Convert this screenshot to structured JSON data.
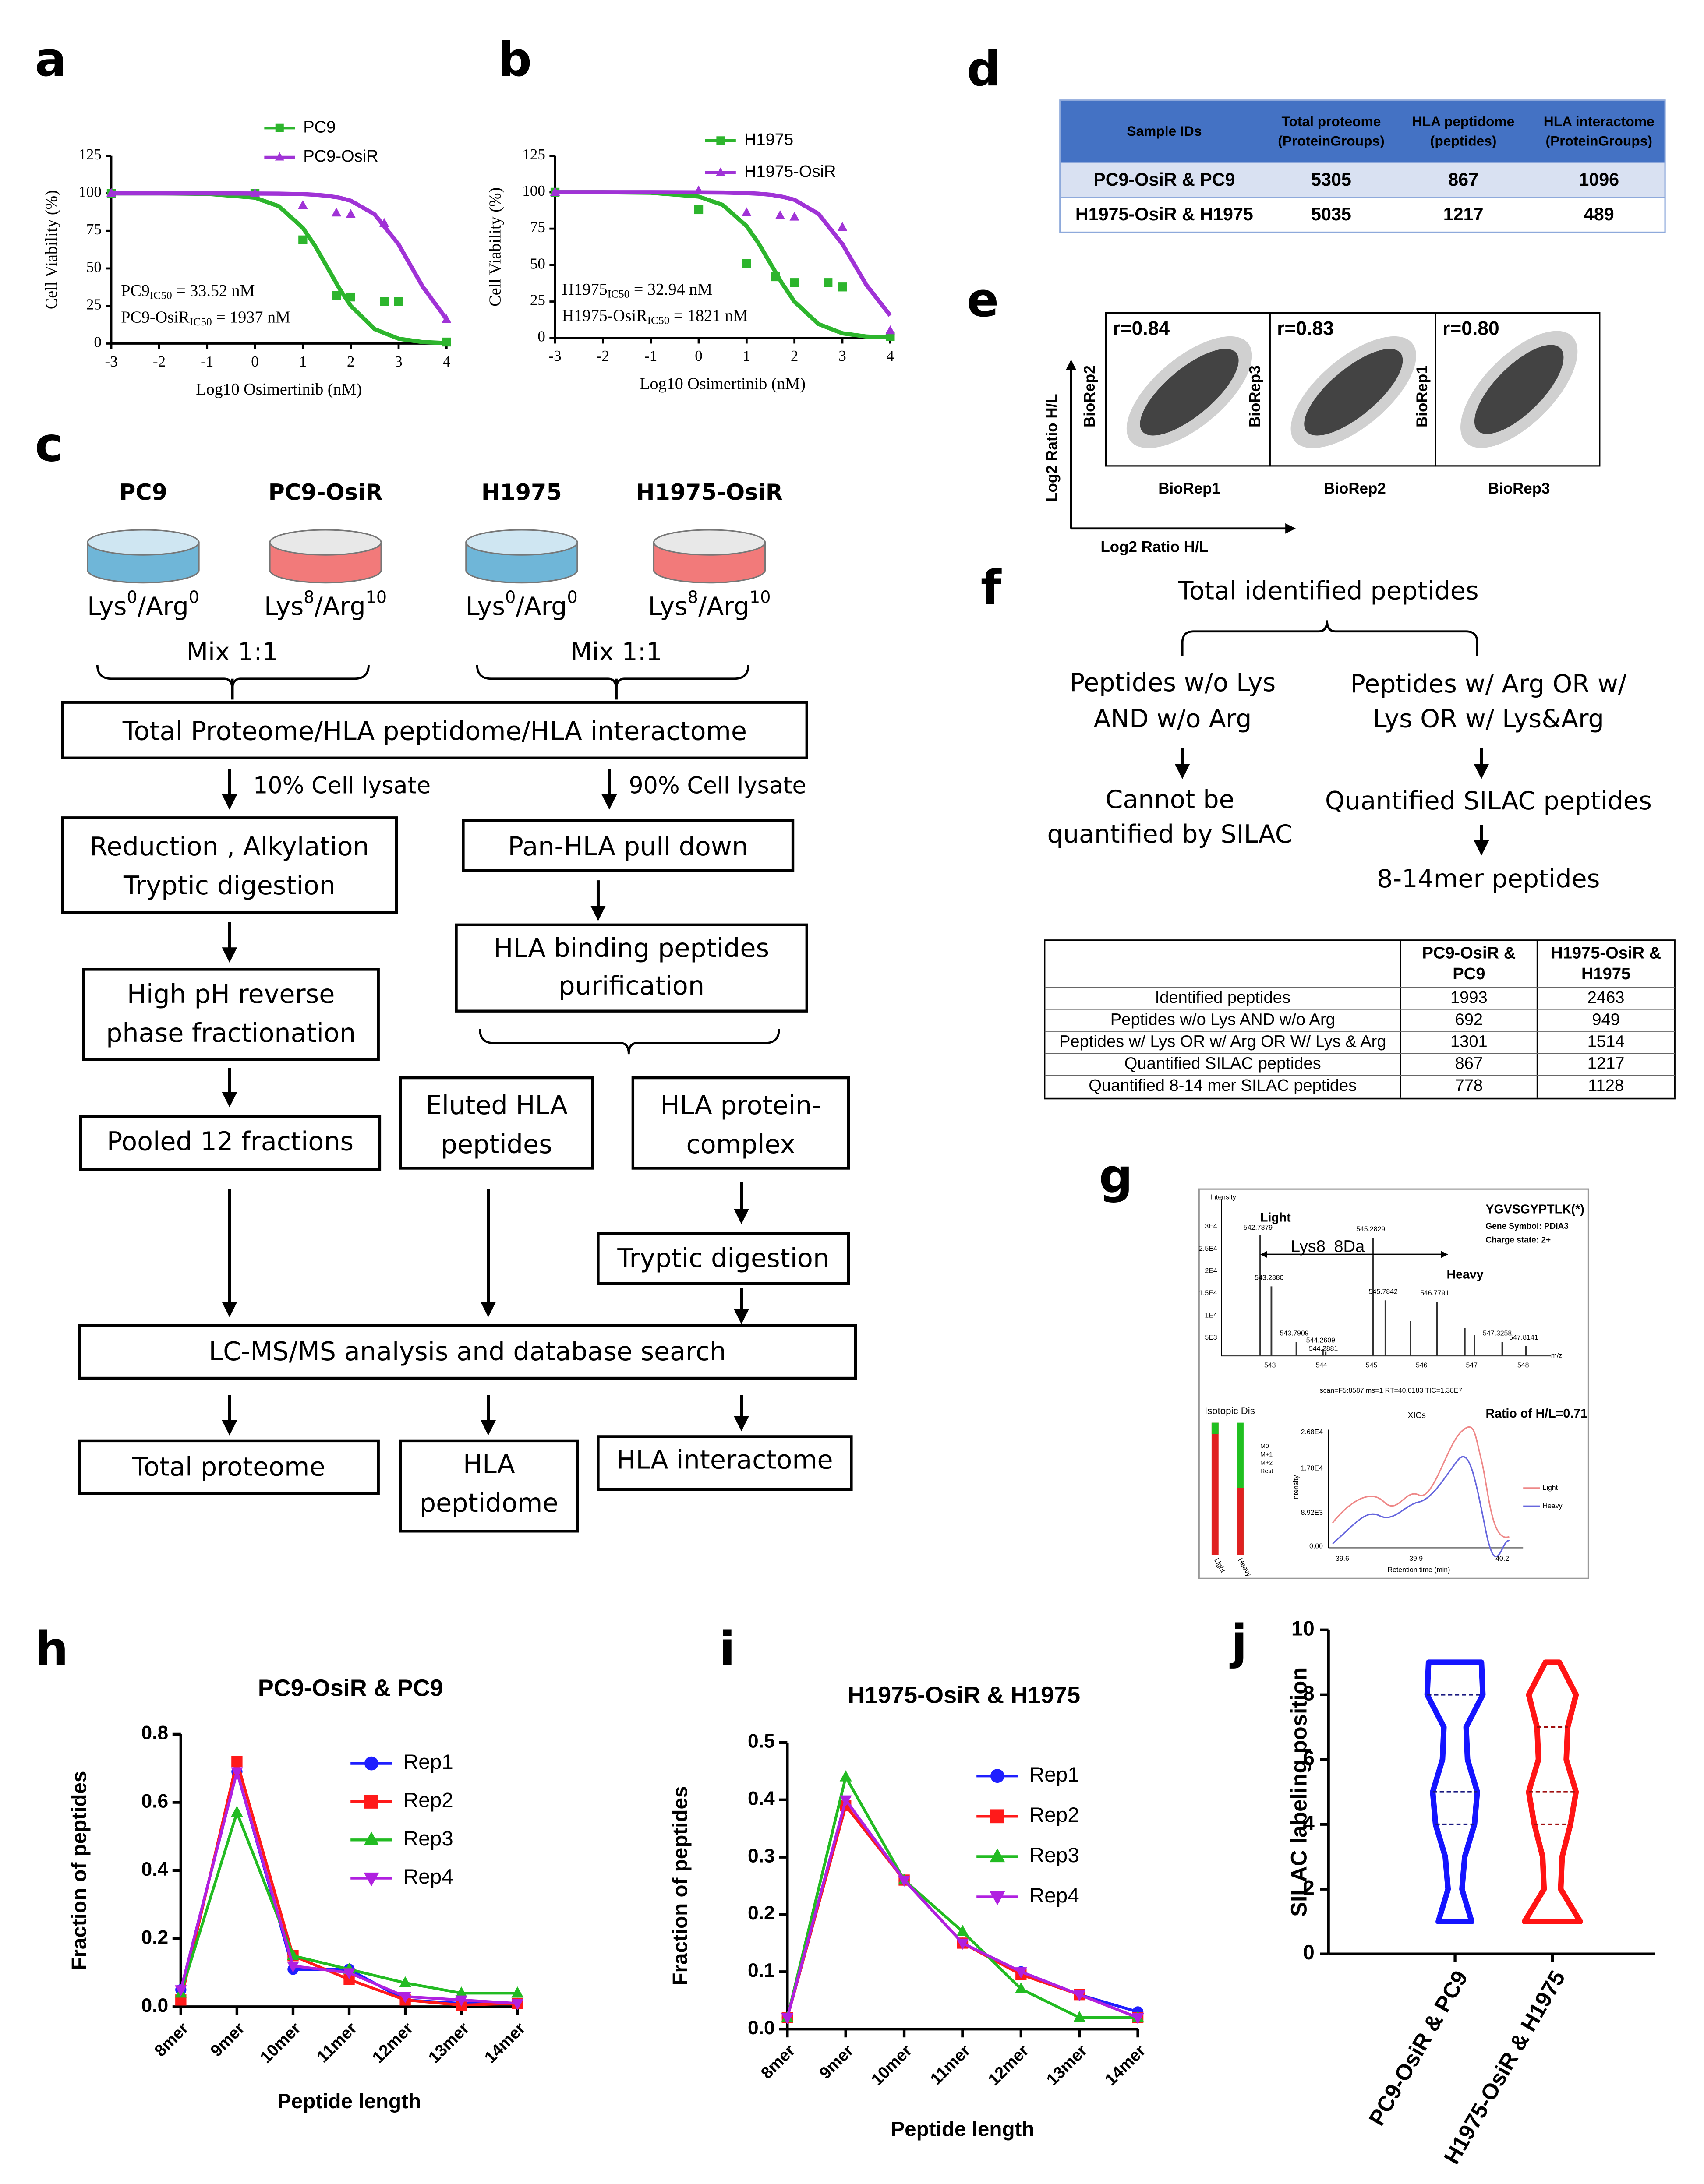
{
  "panel_labels": [
    "a",
    "b",
    "c",
    "d",
    "e",
    "f",
    "g",
    "h",
    "i",
    "j"
  ],
  "chart_data": [
    {
      "type": "dose_response",
      "xlabel": "Log10 Osimertinib (nM)",
      "ylabel": "Cell Viability (%)",
      "xlim": [
        -3,
        4
      ],
      "xticks": [
        -3,
        -2,
        -1,
        0,
        1,
        2,
        3,
        4
      ],
      "ylim": [
        0,
        125
      ],
      "yticks": [
        0,
        25,
        50,
        75,
        100,
        125
      ],
      "series": [
        {
          "name": "PC9",
          "color": "#2db52d",
          "marker": "square",
          "x": [
            -3,
            0,
            1,
            1.7,
            2,
            2.7,
            3,
            4
          ],
          "values": [
            100,
            100,
            69,
            32,
            31,
            28,
            28,
            1
          ],
          "fit_x": [
            -3,
            -2,
            -1,
            0,
            0.5,
            1,
            1.25,
            1.5,
            1.75,
            2,
            2.5,
            3,
            3.5,
            4
          ],
          "fit_values": [
            100,
            100,
            99.7,
            97.1,
            91.4,
            77.0,
            65.3,
            51.4,
            37.3,
            25.1,
            9.6,
            3.2,
            1.0,
            0.3
          ]
        },
        {
          "name": "PC9-OsiR",
          "color": "#a033d6",
          "marker": "triangle",
          "x": [
            -3,
            0,
            1,
            1.7,
            2,
            2.7,
            4
          ],
          "values": [
            100,
            100,
            92,
            87,
            86,
            80,
            16
          ],
          "fit_x": [
            -3,
            -2,
            -1,
            0,
            0.5,
            1,
            1.25,
            1.5,
            1.75,
            2,
            2.5,
            3,
            3.5,
            4
          ],
          "fit_values": [
            100,
            100,
            100,
            99.9,
            99.8,
            99.5,
            99.1,
            98.4,
            97.2,
            95.1,
            86.0,
            66.0,
            38.0,
            16.2
          ]
        }
      ],
      "annotations": [
        {
          "text": "PC9",
          "sub": "IC50",
          "tail": " = 33.52 nM"
        },
        {
          "text": "PC9-OsiR",
          "sub": "IC50",
          "tail": " = 1937 nM"
        }
      ]
    },
    {
      "type": "dose_response",
      "xlabel": "Log10 Osimertinib (nM)",
      "ylabel": "Cell Viability (%)",
      "xlim": [
        -3,
        4
      ],
      "xticks": [
        -3,
        -2,
        -1,
        0,
        1,
        2,
        3,
        4
      ],
      "ylim": [
        0,
        125
      ],
      "yticks": [
        0,
        25,
        50,
        75,
        100,
        125
      ],
      "series": [
        {
          "name": "H1975",
          "color": "#2db52d",
          "marker": "square",
          "x": [
            -3,
            0,
            1,
            1.6,
            2,
            2.7,
            3,
            4
          ],
          "values": [
            100,
            88,
            51,
            42,
            38,
            38,
            35,
            1
          ],
          "fit_x": [
            -3,
            -2,
            -1,
            0,
            0.5,
            1,
            1.25,
            1.5,
            1.75,
            2,
            2.5,
            3,
            3.5,
            4
          ],
          "fit_values": [
            100,
            100,
            99.7,
            97.0,
            91.3,
            76.8,
            65.0,
            51.0,
            37.0,
            24.9,
            9.6,
            3.2,
            1.0,
            0.3
          ]
        },
        {
          "name": "H1975-OsiR",
          "color": "#a033d6",
          "marker": "triangle",
          "x": [
            -3,
            0,
            1,
            1.7,
            2,
            3,
            4
          ],
          "values": [
            100,
            101,
            86,
            84,
            83,
            76,
            5
          ],
          "fit_x": [
            -3,
            -2,
            -1,
            0,
            0.5,
            1,
            1.25,
            1.5,
            1.75,
            2,
            2.5,
            3,
            3.5,
            4
          ],
          "fit_values": [
            100,
            100,
            100,
            99.9,
            99.8,
            99.4,
            99.0,
            98.3,
            96.9,
            94.8,
            85.2,
            64.5,
            36.5,
            15.4
          ]
        }
      ],
      "annotations": [
        {
          "text": "H1975",
          "sub": "IC50",
          "tail": " = 32.94 nM"
        },
        {
          "text": "H1975-OsiR",
          "sub": "IC50",
          "tail": " = 1821 nM"
        }
      ]
    },
    {
      "type": "line",
      "title": "PC9-OsiR & PC9",
      "xlabel": "Peptide length",
      "ylabel": "Fraction of peptides",
      "categories": [
        "8mer",
        "9mer",
        "10mer",
        "11mer",
        "12mer",
        "13mer",
        "14mer"
      ],
      "ylim": [
        0,
        0.8
      ],
      "yticks": [
        {
          "value": 0,
          "label": "0.0"
        },
        0.2,
        0.4,
        0.6,
        0.8
      ],
      "series": [
        {
          "name": "Rep1",
          "color": "#1f1fff",
          "marker": "circle",
          "values": [
            0.05,
            0.69,
            0.11,
            0.11,
            0.02,
            0.01,
            0.01
          ]
        },
        {
          "name": "Rep2",
          "color": "#ff1a1a",
          "marker": "square",
          "values": [
            0.02,
            0.72,
            0.15,
            0.08,
            0.02,
            0.005,
            0.01
          ]
        },
        {
          "name": "Rep3",
          "color": "#22bb22",
          "marker": "triangle",
          "values": [
            0.04,
            0.57,
            0.15,
            0.11,
            0.07,
            0.04,
            0.04
          ]
        },
        {
          "name": "Rep4",
          "color": "#b020e0",
          "marker": "triangle-down",
          "values": [
            0.05,
            0.69,
            0.12,
            0.1,
            0.03,
            0.02,
            0.01
          ]
        }
      ]
    },
    {
      "type": "line",
      "title": "H1975-OsiR & H1975",
      "xlabel": "Peptide length",
      "ylabel": "Fraction of peptides",
      "categories": [
        "8mer",
        "9mer",
        "10mer",
        "11mer",
        "12mer",
        "13mer",
        "14mer"
      ],
      "ylim": [
        0,
        0.5
      ],
      "yticks": [
        {
          "value": 0,
          "label": "0.0"
        },
        0.1,
        0.2,
        0.3,
        0.4,
        0.5
      ],
      "series": [
        {
          "name": "Rep1",
          "color": "#1f1fff",
          "marker": "circle",
          "values": [
            0.02,
            0.39,
            0.26,
            0.15,
            0.1,
            0.06,
            0.03
          ]
        },
        {
          "name": "Rep2",
          "color": "#ff1a1a",
          "marker": "square",
          "values": [
            0.02,
            0.39,
            0.26,
            0.15,
            0.095,
            0.06,
            0.02
          ]
        },
        {
          "name": "Rep3",
          "color": "#22bb22",
          "marker": "triangle",
          "values": [
            0.02,
            0.44,
            0.26,
            0.17,
            0.07,
            0.02,
            0.02
          ]
        },
        {
          "name": "Rep4",
          "color": "#b020e0",
          "marker": "triangle-down",
          "values": [
            0.02,
            0.4,
            0.26,
            0.15,
            0.1,
            0.06,
            0.02
          ]
        }
      ]
    },
    {
      "type": "violin",
      "ylabel": "SILAC labeling position",
      "categories": [
        "PC9-OsiR & PC9",
        "H1975-OsiR & H1975"
      ],
      "ylim": [
        0,
        10
      ],
      "yticks": [
        0,
        2,
        4,
        6,
        8,
        10
      ],
      "series": [
        {
          "color": "#1414ff",
          "quartile_color": "#1a1a80",
          "min": 1,
          "q1": 4,
          "median": 5,
          "q3": 8,
          "max": 9,
          "density_y": [
            1,
            2,
            3,
            4,
            5,
            6,
            7,
            8,
            9
          ],
          "density": [
            0.6,
            0.25,
            0.35,
            0.7,
            0.8,
            0.45,
            0.4,
            1.0,
            0.95
          ]
        },
        {
          "color": "#ff1414",
          "quartile_color": "#a01010",
          "min": 1,
          "q1": 4,
          "median": 5,
          "q3": 7,
          "max": 9,
          "density_y": [
            1,
            2,
            3,
            4,
            5,
            6,
            7,
            8,
            9
          ],
          "density": [
            1.0,
            0.3,
            0.35,
            0.65,
            0.85,
            0.5,
            0.55,
            0.85,
            0.25
          ]
        }
      ]
    }
  ],
  "workflow": {
    "cells": [
      "PC9",
      "PC9-OsiR",
      "H1975",
      "H1975-OsiR"
    ],
    "media": [
      {
        "a": "Lys",
        "a_sup": "0",
        "b": "/Arg",
        "b_sup": "0"
      },
      {
        "a": "Lys",
        "a_sup": "8",
        "b": "/Arg",
        "b_sup": "10"
      },
      {
        "a": "Lys",
        "a_sup": "0",
        "b": "/Arg",
        "b_sup": "0"
      },
      {
        "a": "Lys",
        "a_sup": "8",
        "b": "/Arg",
        "b_sup": "10"
      }
    ],
    "mix": [
      "Mix 1:1",
      "Mix 1:1"
    ],
    "edge_labels": [
      "10% Cell lysate",
      "90% Cell lysate"
    ],
    "nodes": [
      {
        "lines": [
          "Total Proteome/HLA peptidome/HLA interactome"
        ]
      },
      {
        "lines": [
          "Reduction , Alkylation",
          "Tryptic digestion"
        ]
      },
      {
        "lines": [
          "Pan-HLA pull down"
        ]
      },
      {
        "lines": [
          "HLA binding peptides",
          "purification"
        ]
      },
      {
        "lines": [
          "High pH reverse",
          "phase fractionation"
        ]
      },
      {
        "lines": [
          "Pooled 12 fractions"
        ]
      },
      {
        "lines": [
          "Eluted HLA",
          "peptides"
        ]
      },
      {
        "lines": [
          "HLA protein-",
          "complex"
        ]
      },
      {
        "lines": [
          "Tryptic digestion"
        ]
      },
      {
        "lines": [
          "LC-MS/MS analysis and database search"
        ]
      },
      {
        "lines": [
          "Total proteome"
        ]
      },
      {
        "lines": [
          "HLA",
          "peptidome"
        ]
      },
      {
        "lines": [
          "HLA interactome"
        ]
      }
    ]
  },
  "table_d": {
    "header": [
      [
        "Sample IDs"
      ],
      [
        "Total proteome",
        "(ProteinGroups)"
      ],
      [
        "HLA peptidome",
        "(peptides)"
      ],
      [
        "HLA interactome",
        "(ProteinGroups)"
      ]
    ],
    "rows": [
      [
        "PC9-OsiR & PC9",
        5305,
        867,
        1096
      ],
      [
        "H1975-OsiR & H1975",
        5035,
        1217,
        489
      ]
    ]
  },
  "correlation": {
    "r": [
      "r=0.84",
      "r=0.83",
      "r=0.80"
    ],
    "ylabels": [
      "BioRep2",
      "BioRep3",
      "BioRep1"
    ],
    "xlabels": [
      "BioRep1",
      "BioRep2",
      "BioRep3"
    ],
    "axis_y": "Log2 Ratio H/L",
    "axis_x": "Log2 Ratio H/L"
  },
  "peptide_flow": {
    "root": "Total identified peptides",
    "left": [
      "Peptides w/o Lys",
      "AND w/o Arg"
    ],
    "right": [
      "Peptides w/ Arg OR w/",
      "Lys OR w/ Lys&Arg"
    ],
    "left_result": [
      "Cannot be",
      "quantified by SILAC"
    ],
    "right_result": "Quantified SILAC peptides",
    "final": "8-14mer peptides"
  },
  "table_f": {
    "header": [
      [
        "PC9-OsiR &",
        "PC9"
      ],
      [
        "H1975-OsiR &",
        "H1975"
      ]
    ],
    "rows": [
      [
        "Identified peptides",
        1993,
        2463
      ],
      [
        "Peptides w/o Lys AND w/o Arg",
        692,
        949
      ],
      [
        "Peptides w/ Lys OR w/ Arg OR W/ Lys & Arg",
        1301,
        1514
      ],
      [
        "Quantified SILAC peptides",
        867,
        1217
      ],
      [
        "Quantified 8-14 mer SILAC peptides",
        778,
        1128
      ]
    ]
  },
  "spectrum": {
    "intensity": "Intensity",
    "light": "Light",
    "lys8": "Lys8",
    "da": "8Da",
    "heavy": "Heavy",
    "peptide": "YGVSGYPTLK(*)",
    "gene": "Gene Symbol: PDIA3",
    "charge": "Charge state: 2+",
    "peaks": [
      "542.7879",
      "543.2880",
      "543.7909",
      "544.2609",
      "544.2881",
      "545.2829",
      "545.7842",
      "546.7791",
      "547.3258",
      "547.8141"
    ],
    "yticks": [
      "3E4",
      "2.5E4",
      "2E4",
      "1.5E4",
      "1E4",
      "5E3"
    ],
    "xticks": [
      "543",
      "544",
      "545",
      "546",
      "547",
      "548"
    ],
    "mz": "m/z",
    "scan": "scan=F5:8587 ms=1 RT=40.0183 TIC=1.38E7",
    "isotopic": "Isotopic Dis",
    "iso_legend": [
      "M0",
      "M+1",
      "M+2",
      "Rest"
    ],
    "iso_bars": [
      "Light",
      "Heavy"
    ],
    "xic": "XICs",
    "ratio": "Ratio of H/L=0.71",
    "xic_yticks": [
      "2.68E4",
      "1.78E4",
      "8.92E3",
      "0.00"
    ],
    "xic_xticks": [
      "39.6",
      "39.9",
      "40.2"
    ],
    "xic_xlabel": "Retention time (min)",
    "xic_ylabel": "Intensity",
    "xic_legend": [
      "Light",
      "Heavy"
    ]
  }
}
